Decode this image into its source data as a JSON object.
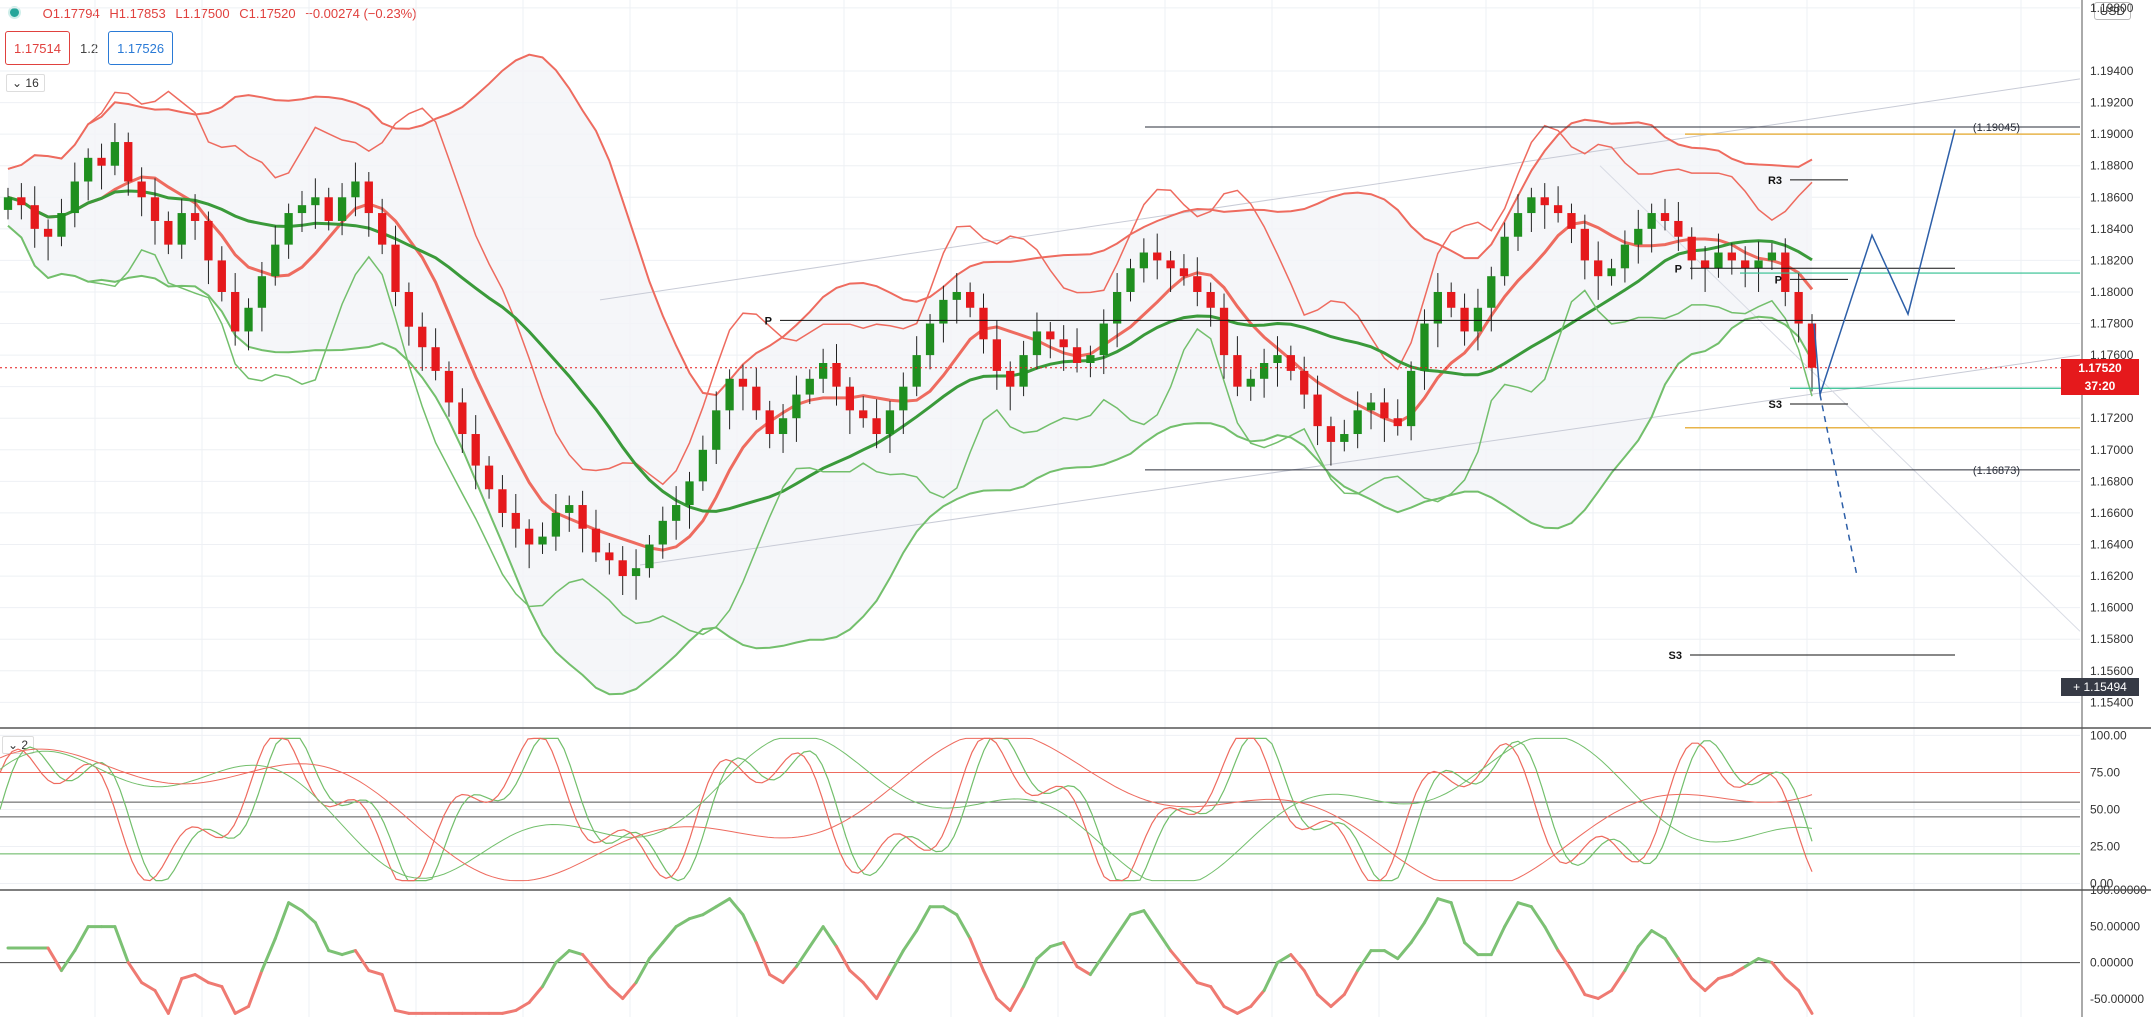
{
  "header": {
    "ohlc": {
      "open": "O1.17794",
      "high": "H1.17853",
      "low": "L1.17500",
      "close": "C1.17520",
      "change": "−0.00274 (−0.23%)"
    },
    "sell_price": "1.17514",
    "quantity": "1.2",
    "buy_price": "1.17526",
    "currency": "USD",
    "main_pane_badge": "16",
    "osc_pane_badge": "2"
  },
  "price_tags": {
    "last_price": "1.17520",
    "countdown": "37:20",
    "crosshair": "1.15494"
  },
  "chart_data": [
    {
      "type": "candlestick",
      "pane": "main",
      "ylim": [
        1.1525,
        1.1985
      ],
      "y_ticks": [
        "1.19800",
        "1.19400",
        "1.19200",
        "1.19000",
        "1.18800",
        "1.18600",
        "1.18400",
        "1.18200",
        "1.18000",
        "1.17800",
        "1.17600",
        "1.17400",
        "1.17200",
        "1.17000",
        "1.16800",
        "1.16600",
        "1.16400",
        "1.16200",
        "1.16000",
        "1.15800",
        "1.15600",
        "1.15400"
      ],
      "y_tick_values": [
        1.198,
        1.194,
        1.192,
        1.19,
        1.188,
        1.186,
        1.184,
        1.182,
        1.18,
        1.178,
        1.176,
        1.174,
        1.172,
        1.17,
        1.168,
        1.166,
        1.164,
        1.162,
        1.16,
        1.158,
        1.156,
        1.154
      ],
      "close_series": [
        1.186,
        1.1855,
        1.184,
        1.1835,
        1.185,
        1.187,
        1.1885,
        1.188,
        1.1895,
        1.187,
        1.186,
        1.1845,
        1.183,
        1.185,
        1.1845,
        1.182,
        1.18,
        1.1775,
        1.179,
        1.181,
        1.183,
        1.185,
        1.1855,
        1.186,
        1.1845,
        1.186,
        1.187,
        1.185,
        1.183,
        1.18,
        1.1778,
        1.1765,
        1.175,
        1.173,
        1.171,
        1.169,
        1.1675,
        1.166,
        1.165,
        1.164,
        1.1645,
        1.166,
        1.1665,
        1.165,
        1.1635,
        1.163,
        1.162,
        1.1625,
        1.164,
        1.1655,
        1.1665,
        1.168,
        1.17,
        1.1725,
        1.1745,
        1.174,
        1.1725,
        1.171,
        1.172,
        1.1735,
        1.1745,
        1.1755,
        1.174,
        1.1725,
        1.172,
        1.171,
        1.1725,
        1.174,
        1.176,
        1.178,
        1.1795,
        1.18,
        1.179,
        1.177,
        1.175,
        1.174,
        1.176,
        1.1775,
        1.177,
        1.1765,
        1.1755,
        1.176,
        1.178,
        1.18,
        1.1815,
        1.1825,
        1.182,
        1.1815,
        1.181,
        1.18,
        1.179,
        1.176,
        1.174,
        1.1745,
        1.1755,
        1.176,
        1.175,
        1.1735,
        1.1715,
        1.1705,
        1.171,
        1.1725,
        1.173,
        1.172,
        1.1715,
        1.175,
        1.178,
        1.18,
        1.179,
        1.1775,
        1.179,
        1.181,
        1.1835,
        1.185,
        1.186,
        1.1855,
        1.185,
        1.184,
        1.182,
        1.181,
        1.1815,
        1.183,
        1.184,
        1.185,
        1.1845,
        1.1835,
        1.182,
        1.1815,
        1.1825,
        1.182,
        1.1815,
        1.182,
        1.1825,
        1.18,
        1.178,
        1.1752
      ],
      "reference_lines": [
        {
          "label": "(1.19045)",
          "value": 1.19045
        },
        {
          "label": "(1.16873)",
          "value": 1.16873
        }
      ],
      "pivot_labels": [
        "P",
        "R3",
        "P",
        "S3",
        "S3",
        "P"
      ],
      "last_price": 1.1752
    },
    {
      "type": "line",
      "pane": "stochastic",
      "ylim": [
        -3,
        105
      ],
      "y_ticks": [
        "100.00",
        "75.00",
        "50.00",
        "25.00",
        "0.00"
      ],
      "y_tick_values": [
        100,
        75,
        50,
        25,
        0
      ],
      "levels": [
        75,
        55,
        45,
        20
      ]
    },
    {
      "type": "line",
      "pane": "momentum",
      "ylim": [
        -75,
        100
      ],
      "y_ticks": [
        "100.00000",
        "50.00000",
        "0.00000",
        "-50.00000"
      ],
      "y_tick_values": [
        100,
        50,
        0,
        -50
      ],
      "zero_line": 0
    }
  ],
  "colors": {
    "up": "#1f8f1f",
    "down": "#e5191c",
    "band_red": "#ee6b5f",
    "band_green": "#73bf6c",
    "grid": "#eef0f4",
    "axis_text": "#333333",
    "last_price": "#e5191c",
    "support": "#2fbf8f",
    "fib": "#e8b44a",
    "projection": "#2d5fa8"
  }
}
